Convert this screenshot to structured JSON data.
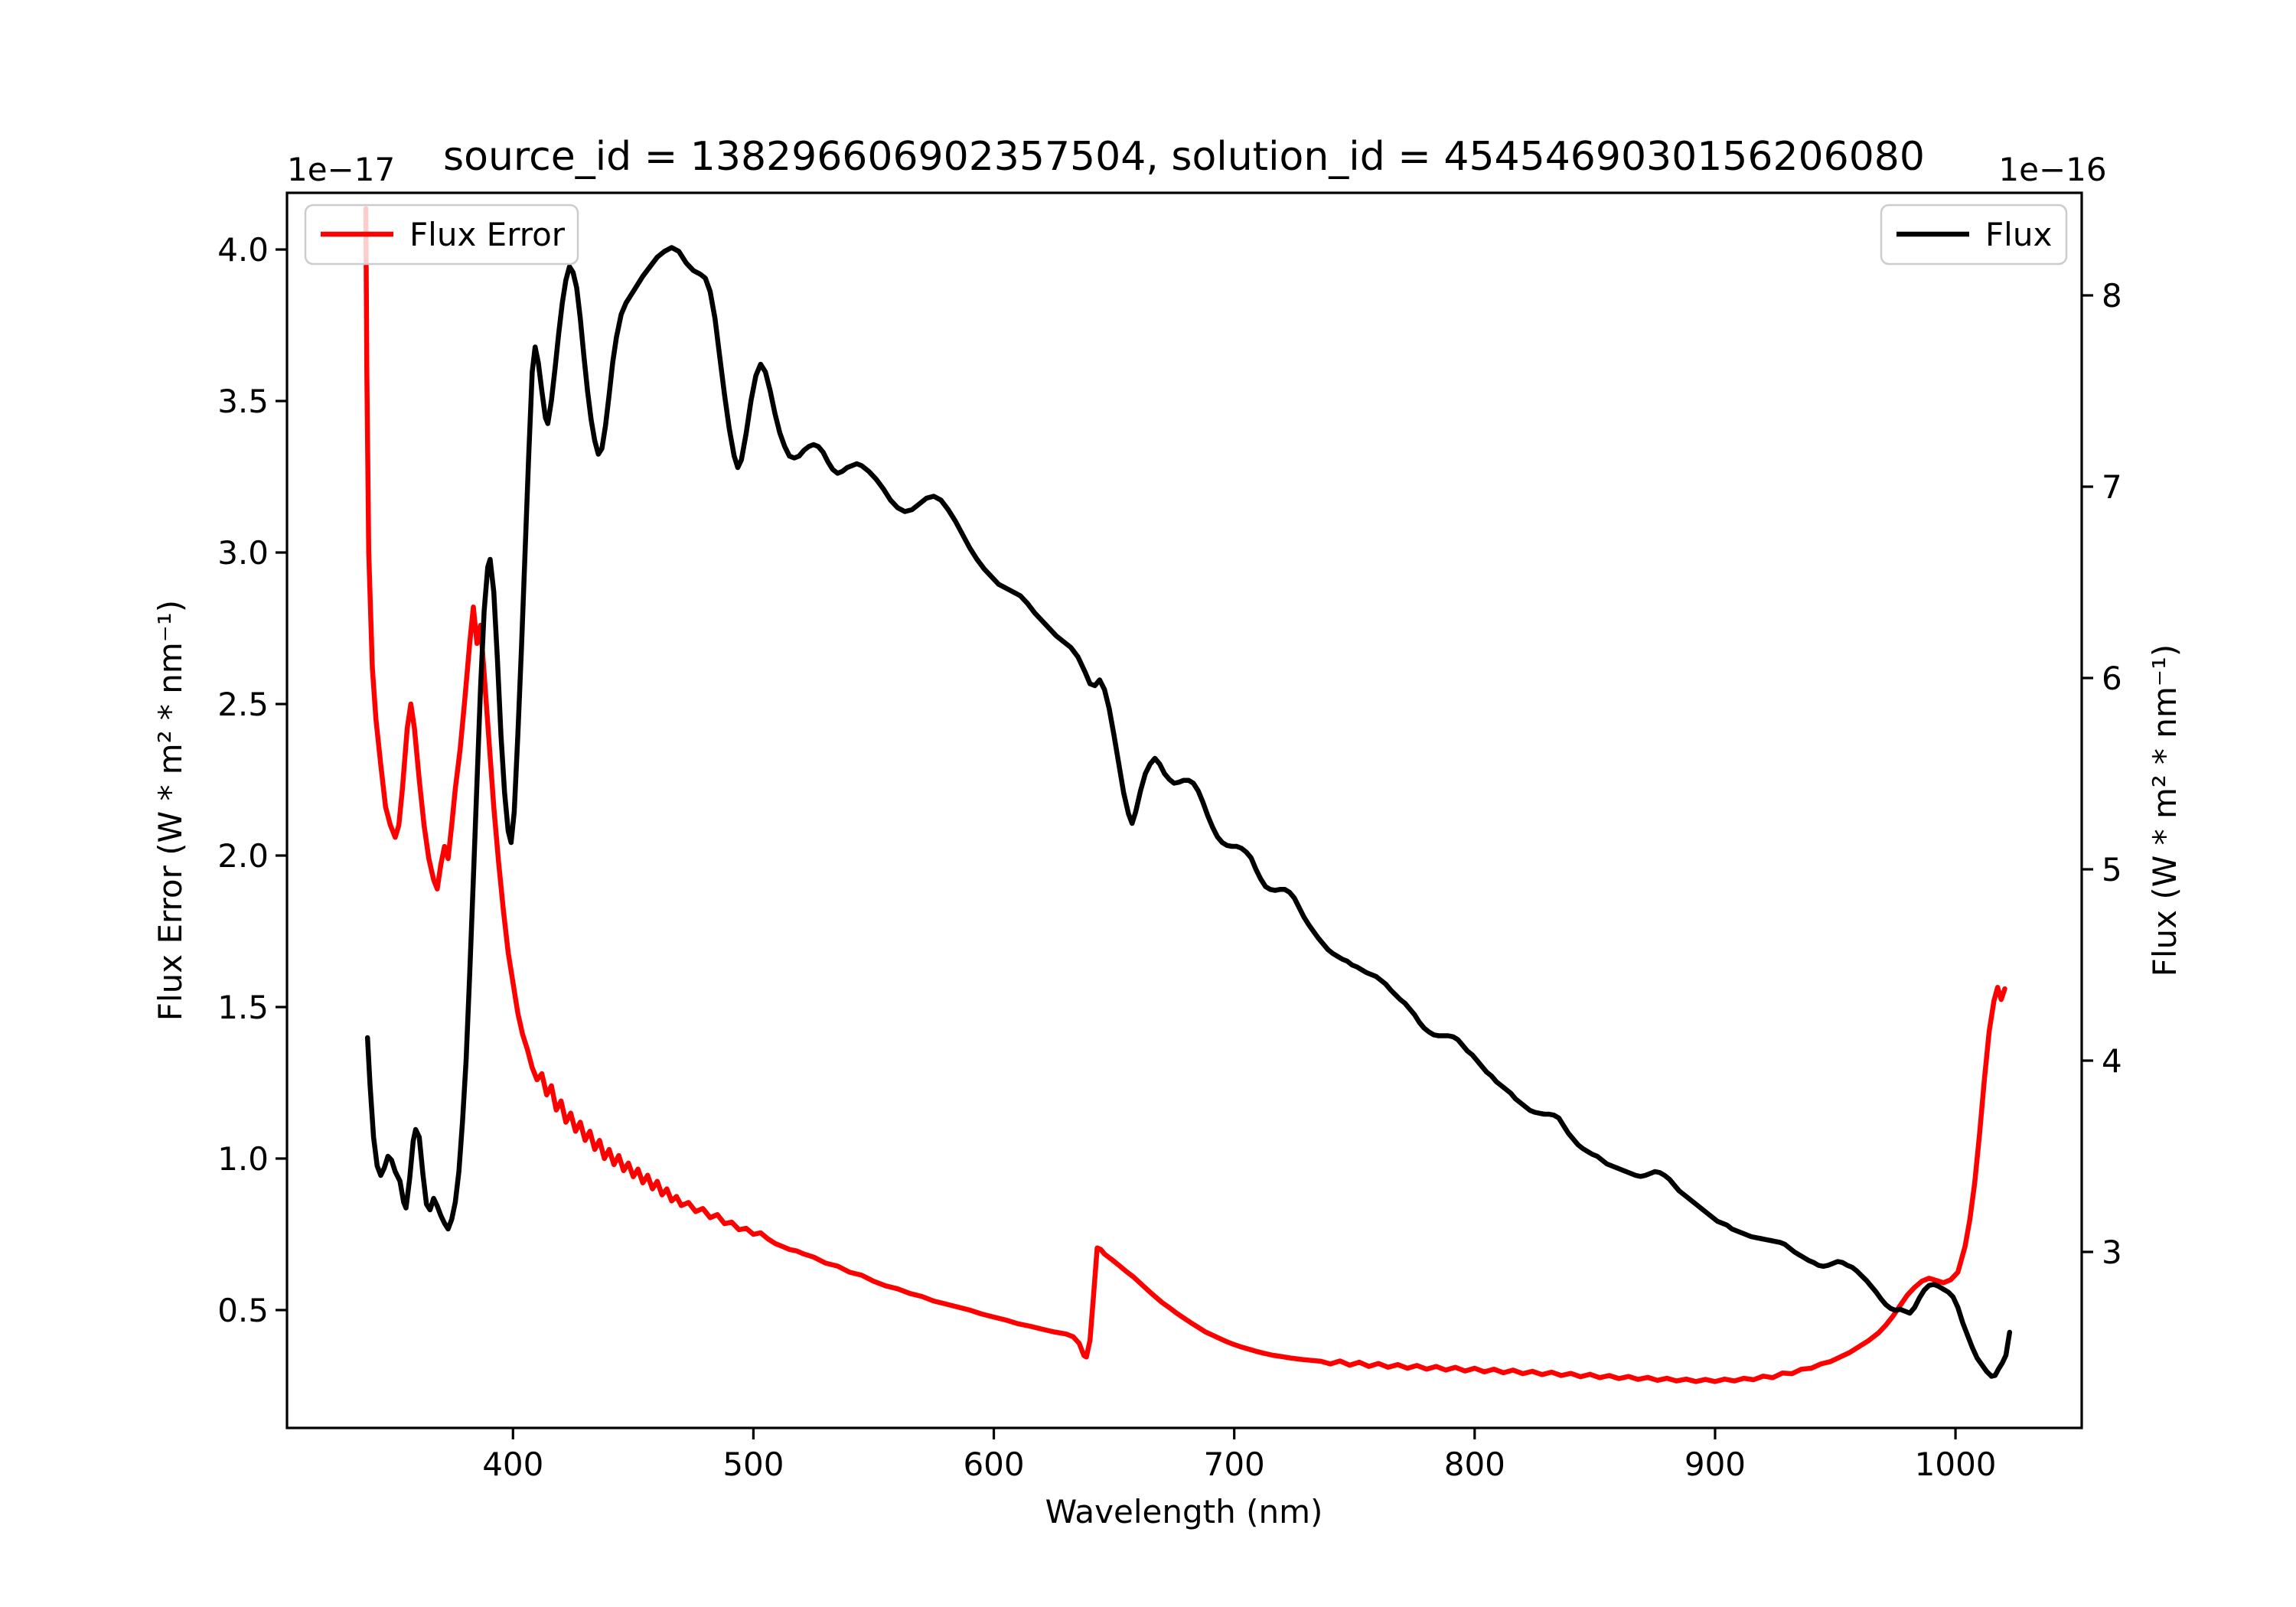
{
  "chart_data": {
    "type": "line",
    "title": "source_id = 138296606902357504, solution_id = 4545469030156206080",
    "xlabel": "Wavelength (nm)",
    "grid": false,
    "xlim": [
      306,
      1052.5
    ],
    "x_ticks": [
      400,
      500,
      600,
      700,
      800,
      900,
      1000
    ],
    "x_tick_labels": [
      "400",
      "500",
      "600",
      "700",
      "800",
      "900",
      "1000"
    ],
    "left_axis": {
      "label": "Flux Error (W * m² * nm⁻¹)",
      "offset": "1e−17",
      "color": "#ff0000",
      "lim": [
        0.111,
        4.187
      ],
      "ticks": [
        0.5,
        1.0,
        1.5,
        2.0,
        2.5,
        3.0,
        3.5,
        4.0
      ],
      "tick_labels": [
        "0.5",
        "1.0",
        "1.5",
        "2.0",
        "2.5",
        "3.0",
        "3.5",
        "4.0"
      ]
    },
    "right_axis": {
      "label": "Flux (W * m² * nm⁻¹)",
      "offset": "1e−16",
      "color": "#000000",
      "lim": [
        2.08,
        8.536
      ],
      "ticks": [
        3,
        4,
        5,
        6,
        7,
        8
      ],
      "tick_labels": [
        "3",
        "4",
        "5",
        "6",
        "7",
        "8"
      ]
    },
    "legend": [
      {
        "label": "Flux Error",
        "color": "#ff0000",
        "position": "upper left"
      },
      {
        "label": "Flux",
        "color": "#000000",
        "position": "upper right"
      }
    ],
    "series": [
      {
        "name": "Flux Error",
        "axis": "left",
        "color": "#ff0000",
        "units_scale": "1e-17",
        "x": [
          338.8,
          339.2,
          340,
          341.5,
          343,
          345,
          347,
          349,
          351,
          352.5,
          354,
          356,
          357.5,
          359,
          361,
          363,
          365,
          367,
          368.5,
          370,
          371.5,
          373,
          374.5,
          376,
          378,
          380,
          382,
          383.5,
          385,
          386.5,
          388,
          390,
          392,
          394,
          396,
          398,
          400,
          402,
          404,
          406,
          408,
          410,
          412,
          414,
          416,
          418,
          420,
          422,
          424,
          426,
          428,
          430,
          432,
          434,
          436,
          438,
          440,
          442,
          444,
          446,
          448,
          450,
          452,
          454,
          456,
          458,
          460,
          462,
          464,
          466,
          468,
          470,
          473,
          476,
          479,
          482,
          485,
          488,
          491,
          494,
          497,
          500,
          503,
          506,
          509,
          512,
          515,
          518,
          521,
          525,
          530,
          535,
          540,
          545,
          550,
          555,
          560,
          565,
          570,
          575,
          580,
          585,
          590,
          595,
          600,
          605,
          610,
          615,
          620,
          625,
          630,
          633,
          635.5,
          637.5,
          638.5,
          640,
          641.5,
          643,
          644.5,
          646,
          649,
          652,
          655,
          658,
          661,
          664,
          667,
          670,
          673,
          676,
          679,
          682,
          685,
          688,
          691,
          694,
          697,
          700,
          703,
          706,
          709,
          712,
          716,
          720,
          724,
          728,
          732,
          736,
          740,
          744,
          748,
          752,
          756,
          760,
          764,
          768,
          772,
          776,
          780,
          784,
          788,
          792,
          796,
          800,
          804,
          808,
          812,
          816,
          820,
          824,
          828,
          832,
          836,
          840,
          844,
          848,
          852,
          856,
          860,
          864,
          868,
          872,
          876,
          880,
          884,
          888,
          892,
          896,
          900,
          904,
          908,
          912,
          916,
          920,
          924,
          928,
          932,
          936,
          940,
          944,
          948,
          952,
          956,
          960,
          964,
          968,
          971,
          974,
          977,
          980,
          983,
          986,
          989,
          992,
          995,
          998,
          1001,
          1004,
          1006,
          1008,
          1010,
          1012,
          1014,
          1016,
          1017.5,
          1019,
          1020.5
        ],
        "y": [
          4.135,
          3.6,
          3.0,
          2.62,
          2.45,
          2.3,
          2.16,
          2.1,
          2.06,
          2.1,
          2.22,
          2.42,
          2.5,
          2.42,
          2.25,
          2.1,
          1.99,
          1.92,
          1.89,
          1.97,
          2.03,
          1.99,
          2.1,
          2.22,
          2.35,
          2.52,
          2.7,
          2.82,
          2.7,
          2.76,
          2.6,
          2.38,
          2.16,
          1.98,
          1.82,
          1.68,
          1.58,
          1.48,
          1.41,
          1.36,
          1.3,
          1.26,
          1.28,
          1.21,
          1.24,
          1.16,
          1.19,
          1.12,
          1.15,
          1.09,
          1.12,
          1.06,
          1.09,
          1.03,
          1.06,
          1.0,
          1.03,
          0.98,
          1.01,
          0.96,
          0.985,
          0.94,
          0.965,
          0.92,
          0.945,
          0.9,
          0.925,
          0.88,
          0.9,
          0.86,
          0.875,
          0.845,
          0.855,
          0.825,
          0.835,
          0.805,
          0.815,
          0.785,
          0.79,
          0.765,
          0.77,
          0.75,
          0.755,
          0.735,
          0.72,
          0.71,
          0.7,
          0.695,
          0.685,
          0.675,
          0.655,
          0.645,
          0.625,
          0.615,
          0.595,
          0.58,
          0.57,
          0.555,
          0.545,
          0.53,
          0.52,
          0.51,
          0.5,
          0.487,
          0.477,
          0.467,
          0.455,
          0.447,
          0.437,
          0.428,
          0.421,
          0.412,
          0.39,
          0.35,
          0.345,
          0.4,
          0.55,
          0.705,
          0.7,
          0.685,
          0.667,
          0.648,
          0.628,
          0.61,
          0.588,
          0.566,
          0.545,
          0.525,
          0.508,
          0.49,
          0.474,
          0.458,
          0.443,
          0.428,
          0.417,
          0.406,
          0.395,
          0.386,
          0.378,
          0.371,
          0.364,
          0.358,
          0.351,
          0.346,
          0.341,
          0.337,
          0.334,
          0.331,
          0.322,
          0.332,
          0.318,
          0.328,
          0.314,
          0.324,
          0.311,
          0.32,
          0.308,
          0.317,
          0.305,
          0.314,
          0.302,
          0.311,
          0.299,
          0.308,
          0.296,
          0.305,
          0.293,
          0.302,
          0.29,
          0.298,
          0.287,
          0.295,
          0.284,
          0.291,
          0.28,
          0.288,
          0.277,
          0.284,
          0.274,
          0.281,
          0.271,
          0.278,
          0.268,
          0.275,
          0.266,
          0.272,
          0.264,
          0.271,
          0.264,
          0.272,
          0.266,
          0.275,
          0.27,
          0.282,
          0.277,
          0.292,
          0.29,
          0.305,
          0.308,
          0.322,
          0.33,
          0.345,
          0.36,
          0.38,
          0.4,
          0.425,
          0.45,
          0.48,
          0.515,
          0.55,
          0.575,
          0.595,
          0.605,
          0.598,
          0.59,
          0.6,
          0.625,
          0.71,
          0.8,
          0.92,
          1.08,
          1.26,
          1.42,
          1.52,
          1.565,
          1.525,
          1.56
        ]
      },
      {
        "name": "Flux",
        "axis": "right",
        "color": "#000000",
        "units_scale": "1e-16",
        "x": [
          339.5,
          340.5,
          342,
          343.5,
          345,
          346.5,
          348,
          349.5,
          351,
          353,
          354.5,
          355.5,
          357,
          358.5,
          359.5,
          361,
          362.5,
          364,
          365.5,
          367,
          368.5,
          370,
          371.5,
          373,
          374.5,
          376,
          377.5,
          379,
          380.5,
          382,
          383.5,
          385,
          386.5,
          388,
          389.5,
          390.5,
          392,
          393.5,
          395,
          396.5,
          398,
          399.2,
          400.5,
          402,
          403.5,
          405,
          406.5,
          408,
          409.2,
          410.5,
          412,
          413.5,
          414.5,
          416,
          417.5,
          419,
          420.5,
          422,
          423.5,
          425,
          426.5,
          428,
          429.5,
          431,
          432.5,
          434,
          435.5,
          437,
          438.5,
          440,
          441.5,
          443,
          445,
          447,
          449,
          451,
          454,
          457,
          460,
          463,
          466,
          469,
          472,
          475,
          478,
          480,
          482,
          484,
          486,
          488,
          490,
          492,
          493.5,
          495,
          497,
          499,
          501,
          503,
          505,
          507,
          509,
          511,
          513,
          515,
          517,
          519,
          521,
          523,
          525,
          527,
          529,
          531,
          533,
          535,
          537,
          539,
          541,
          543,
          545,
          548,
          551,
          554,
          557,
          560,
          563,
          566,
          569,
          572,
          575,
          578,
          581,
          584,
          587,
          590,
          593,
          596,
          599,
          602,
          605,
          608,
          611,
          614,
          617,
          620,
          623,
          626,
          629,
          632,
          635,
          638,
          640,
          642,
          644,
          646,
          648,
          650,
          652,
          654,
          656,
          657.5,
          659,
          661,
          663,
          665,
          667,
          669,
          671,
          673,
          675,
          677,
          679,
          681,
          683,
          685,
          687,
          689,
          691,
          693,
          695,
          697,
          699,
          701,
          703,
          705,
          707,
          709,
          711,
          713,
          715,
          717,
          719,
          721,
          723,
          725,
          727,
          729,
          731,
          733,
          735,
          737,
          739,
          741,
          743,
          745,
          747,
          749,
          751,
          753,
          755,
          757,
          759,
          761,
          763,
          765,
          767,
          769,
          771,
          773,
          775,
          777,
          779,
          781,
          783,
          785,
          787,
          789,
          791,
          793,
          795,
          797,
          799,
          801,
          803,
          805,
          807,
          809,
          811,
          813,
          815,
          817,
          819,
          821,
          823,
          825,
          827,
          829,
          831,
          833,
          835,
          837,
          839,
          841,
          843,
          845,
          847,
          849,
          851,
          853,
          855,
          857,
          859,
          861,
          863,
          865,
          867,
          869,
          871,
          873,
          875,
          877,
          879,
          881,
          883,
          885,
          887,
          889,
          891,
          893,
          895,
          897,
          899,
          901,
          903,
          905,
          907,
          909,
          911,
          913,
          915,
          917,
          919,
          921,
          923,
          925,
          927,
          929,
          931,
          933,
          935,
          937,
          939,
          941,
          943,
          945,
          947,
          949,
          951,
          953,
          955,
          957,
          959,
          961,
          963,
          965,
          967,
          969,
          971,
          973,
          975,
          977,
          979,
          981,
          983,
          985,
          987,
          989,
          991,
          993,
          995,
          997,
          999,
          1001,
          1003,
          1005,
          1007,
          1009,
          1011,
          1013,
          1015,
          1016.5,
          1018,
          1019.5,
          1021,
          1022.5
        ],
        "y": [
          4.12,
          3.88,
          3.6,
          3.45,
          3.4,
          3.44,
          3.5,
          3.48,
          3.42,
          3.37,
          3.26,
          3.23,
          3.38,
          3.58,
          3.64,
          3.6,
          3.41,
          3.25,
          3.22,
          3.28,
          3.24,
          3.19,
          3.15,
          3.12,
          3.17,
          3.26,
          3.42,
          3.68,
          4.0,
          4.45,
          4.95,
          5.45,
          5.95,
          6.35,
          6.58,
          6.62,
          6.45,
          6.1,
          5.7,
          5.4,
          5.2,
          5.14,
          5.3,
          5.7,
          6.15,
          6.65,
          7.15,
          7.6,
          7.73,
          7.65,
          7.5,
          7.36,
          7.33,
          7.45,
          7.62,
          7.8,
          7.96,
          8.08,
          8.15,
          8.12,
          8.04,
          7.88,
          7.68,
          7.5,
          7.35,
          7.24,
          7.17,
          7.2,
          7.32,
          7.48,
          7.65,
          7.78,
          7.9,
          7.96,
          8.0,
          8.04,
          8.1,
          8.15,
          8.2,
          8.23,
          8.25,
          8.23,
          8.17,
          8.13,
          8.11,
          8.09,
          8.02,
          7.88,
          7.68,
          7.48,
          7.3,
          7.16,
          7.1,
          7.14,
          7.28,
          7.45,
          7.58,
          7.64,
          7.6,
          7.5,
          7.38,
          7.28,
          7.21,
          7.16,
          7.15,
          7.16,
          7.19,
          7.21,
          7.22,
          7.21,
          7.18,
          7.13,
          7.09,
          7.07,
          7.08,
          7.1,
          7.11,
          7.12,
          7.11,
          7.08,
          7.04,
          6.99,
          6.93,
          6.89,
          6.87,
          6.88,
          6.91,
          6.94,
          6.95,
          6.93,
          6.88,
          6.82,
          6.75,
          6.68,
          6.62,
          6.57,
          6.53,
          6.49,
          6.47,
          6.45,
          6.43,
          6.39,
          6.34,
          6.3,
          6.26,
          6.22,
          6.19,
          6.16,
          6.11,
          6.03,
          5.97,
          5.96,
          5.99,
          5.94,
          5.84,
          5.7,
          5.55,
          5.4,
          5.29,
          5.24,
          5.3,
          5.41,
          5.5,
          5.55,
          5.58,
          5.55,
          5.5,
          5.47,
          5.45,
          5.455,
          5.465,
          5.465,
          5.45,
          5.41,
          5.35,
          5.28,
          5.22,
          5.17,
          5.14,
          5.125,
          5.12,
          5.12,
          5.11,
          5.09,
          5.06,
          5.0,
          4.95,
          4.91,
          4.895,
          4.89,
          4.895,
          4.895,
          4.88,
          4.85,
          4.8,
          4.75,
          4.71,
          4.675,
          4.64,
          4.61,
          4.58,
          4.56,
          4.545,
          4.53,
          4.52,
          4.5,
          4.49,
          4.475,
          4.46,
          4.45,
          4.44,
          4.42,
          4.4,
          4.37,
          4.345,
          4.32,
          4.3,
          4.27,
          4.24,
          4.2,
          4.17,
          4.15,
          4.135,
          4.13,
          4.13,
          4.13,
          4.125,
          4.11,
          4.08,
          4.05,
          4.03,
          4.0,
          3.97,
          3.94,
          3.92,
          3.89,
          3.87,
          3.85,
          3.83,
          3.8,
          3.78,
          3.76,
          3.74,
          3.73,
          3.725,
          3.72,
          3.72,
          3.715,
          3.7,
          3.66,
          3.62,
          3.59,
          3.56,
          3.54,
          3.525,
          3.51,
          3.5,
          3.48,
          3.46,
          3.45,
          3.44,
          3.43,
          3.42,
          3.41,
          3.4,
          3.395,
          3.4,
          3.41,
          3.42,
          3.415,
          3.4,
          3.38,
          3.35,
          3.32,
          3.3,
          3.28,
          3.26,
          3.24,
          3.22,
          3.2,
          3.18,
          3.16,
          3.15,
          3.14,
          3.12,
          3.11,
          3.1,
          3.09,
          3.08,
          3.075,
          3.07,
          3.065,
          3.06,
          3.055,
          3.05,
          3.04,
          3.02,
          3.0,
          2.985,
          2.97,
          2.955,
          2.945,
          2.93,
          2.925,
          2.93,
          2.94,
          2.95,
          2.945,
          2.93,
          2.92,
          2.9,
          2.875,
          2.85,
          2.82,
          2.79,
          2.755,
          2.725,
          2.705,
          2.695,
          2.7,
          2.69,
          2.68,
          2.71,
          2.76,
          2.8,
          2.825,
          2.83,
          2.82,
          2.805,
          2.79,
          2.765,
          2.71,
          2.63,
          2.565,
          2.5,
          2.445,
          2.41,
          2.375,
          2.35,
          2.355,
          2.39,
          2.42,
          2.46,
          2.58
        ]
      }
    ]
  }
}
